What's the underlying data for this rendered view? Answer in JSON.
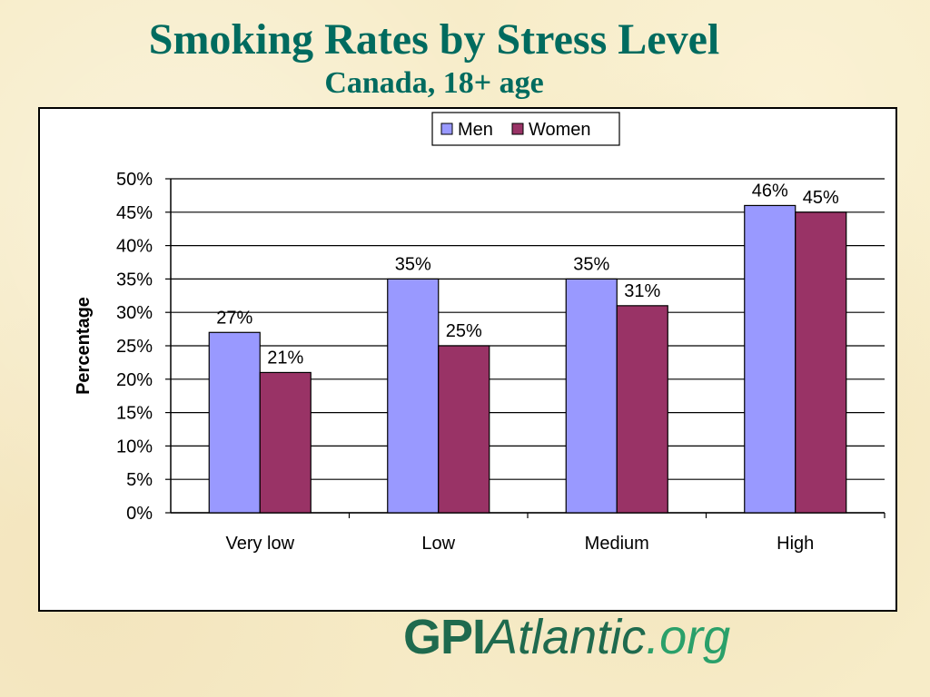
{
  "title": "Smoking Rates by Stress Level",
  "subtitle": "Canada,  18+ age",
  "logo": {
    "part1": "GPI",
    "part2": "Atlantic",
    "part3": ".org"
  },
  "chart_data": {
    "type": "bar",
    "categories": [
      "Very low",
      "Low",
      "Medium",
      "High"
    ],
    "series": [
      {
        "name": "Men",
        "values": [
          27,
          35,
          35,
          46
        ],
        "labels": [
          "27%",
          "35%",
          "35%",
          "46%"
        ],
        "color": "#9999ff"
      },
      {
        "name": "Women",
        "values": [
          21,
          25,
          31,
          45
        ],
        "labels": [
          "21%",
          "25%",
          "31%",
          "45%"
        ],
        "color": "#993366"
      }
    ],
    "ylabel": "Percentage",
    "ylim": [
      0,
      50
    ],
    "yticks": [
      "0%",
      "5%",
      "10%",
      "15%",
      "20%",
      "25%",
      "30%",
      "35%",
      "40%",
      "45%",
      "50%"
    ],
    "grid": true,
    "legend": "top-center"
  }
}
